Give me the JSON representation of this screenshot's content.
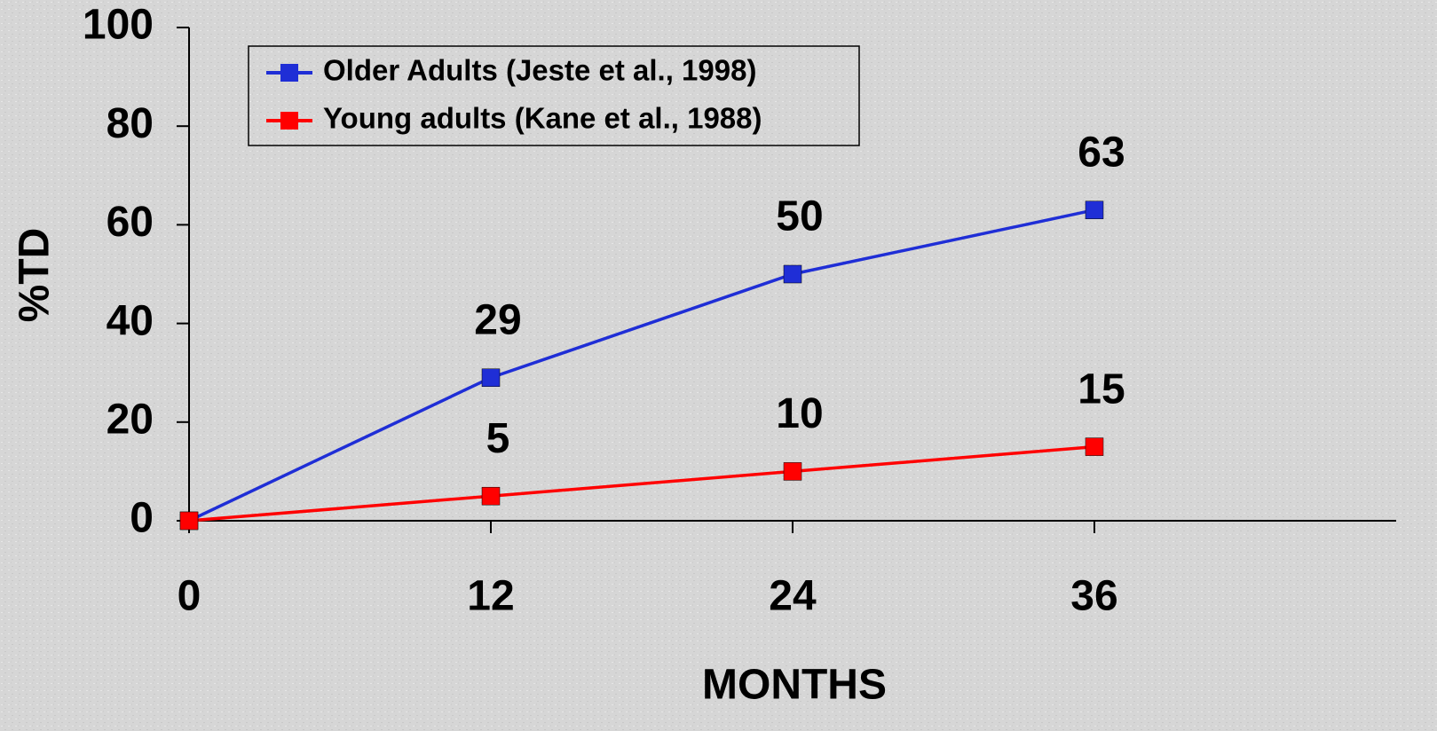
{
  "chart_data": {
    "type": "line",
    "x": [
      0,
      12,
      24,
      36
    ],
    "series": [
      {
        "name": "Older Adults (Jeste et al., 1998)",
        "color": "#1f2ed6",
        "values": [
          0,
          29,
          50,
          63
        ],
        "value_labels": [
          null,
          "29",
          "50",
          "63"
        ]
      },
      {
        "name": "Young adults (Kane et al., 1988)",
        "color": "#ff0000",
        "values": [
          0,
          5,
          10,
          15
        ],
        "value_labels": [
          null,
          "5",
          "10",
          "15"
        ]
      }
    ],
    "xlabel": "MONTHS",
    "ylabel": "%TD",
    "xlim": [
      0,
      48
    ],
    "xticks": [
      0,
      12,
      24,
      36
    ],
    "ylim": [
      0,
      100
    ],
    "yticks": [
      0,
      20,
      40,
      60,
      80,
      100
    ],
    "legend": "upper left"
  }
}
